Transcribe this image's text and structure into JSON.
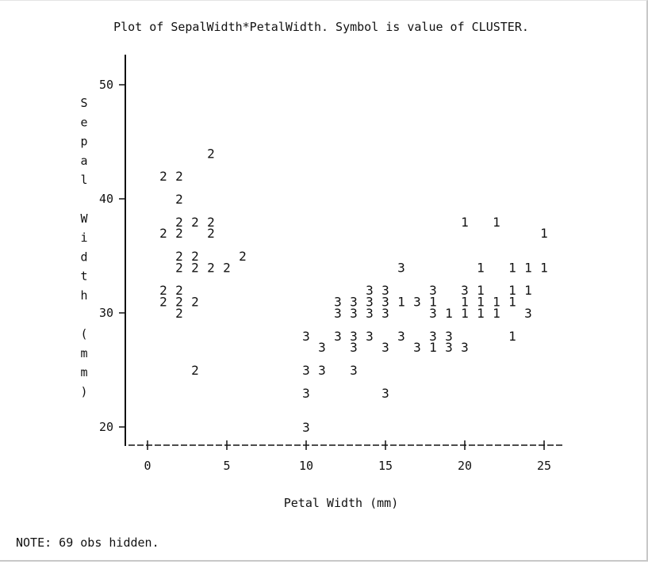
{
  "chart_data": {
    "type": "scatter",
    "title": "Plot of SepalWidth*PetalWidth.  Symbol is value of CLUSTER.",
    "xlabel": "Petal Width (mm)",
    "ylabel": "Sepal Width (mm)",
    "x_ticks": [
      "0",
      "5",
      "10",
      "15",
      "20",
      "25"
    ],
    "y_ticks": [
      "50",
      "40",
      "30",
      "20"
    ],
    "xlim": [
      -1,
      26
    ],
    "ylim": [
      19,
      52
    ],
    "legend": "none",
    "note": "NOTE: 69 obs hidden.",
    "points": [
      {
        "x": 4,
        "y": 44,
        "s": "2"
      },
      {
        "x": 1,
        "y": 42,
        "s": "2"
      },
      {
        "x": 2,
        "y": 42,
        "s": "2"
      },
      {
        "x": 2,
        "y": 40,
        "s": "2"
      },
      {
        "x": 2,
        "y": 38,
        "s": "2"
      },
      {
        "x": 3,
        "y": 38,
        "s": "2"
      },
      {
        "x": 4,
        "y": 38,
        "s": "2"
      },
      {
        "x": 20,
        "y": 38,
        "s": "1"
      },
      {
        "x": 22,
        "y": 38,
        "s": "1"
      },
      {
        "x": 1,
        "y": 37,
        "s": "2"
      },
      {
        "x": 2,
        "y": 37,
        "s": "2"
      },
      {
        "x": 4,
        "y": 37,
        "s": "2"
      },
      {
        "x": 25,
        "y": 37,
        "s": "1"
      },
      {
        "x": 2,
        "y": 35,
        "s": "2"
      },
      {
        "x": 3,
        "y": 35,
        "s": "2"
      },
      {
        "x": 6,
        "y": 35,
        "s": "2"
      },
      {
        "x": 2,
        "y": 34,
        "s": "2"
      },
      {
        "x": 3,
        "y": 34,
        "s": "2"
      },
      {
        "x": 4,
        "y": 34,
        "s": "2"
      },
      {
        "x": 5,
        "y": 34,
        "s": "2"
      },
      {
        "x": 16,
        "y": 34,
        "s": "3"
      },
      {
        "x": 21,
        "y": 34,
        "s": "1"
      },
      {
        "x": 23,
        "y": 34,
        "s": "1"
      },
      {
        "x": 24,
        "y": 34,
        "s": "1"
      },
      {
        "x": 25,
        "y": 34,
        "s": "1"
      },
      {
        "x": 1,
        "y": 32,
        "s": "2"
      },
      {
        "x": 2,
        "y": 32,
        "s": "2"
      },
      {
        "x": 14,
        "y": 32,
        "s": "3"
      },
      {
        "x": 15,
        "y": 32,
        "s": "3"
      },
      {
        "x": 18,
        "y": 32,
        "s": "3"
      },
      {
        "x": 20,
        "y": 32,
        "s": "3"
      },
      {
        "x": 21,
        "y": 32,
        "s": "1"
      },
      {
        "x": 23,
        "y": 32,
        "s": "1"
      },
      {
        "x": 24,
        "y": 32,
        "s": "1"
      },
      {
        "x": 1,
        "y": 31,
        "s": "2"
      },
      {
        "x": 2,
        "y": 31,
        "s": "2"
      },
      {
        "x": 3,
        "y": 31,
        "s": "2"
      },
      {
        "x": 12,
        "y": 31,
        "s": "3"
      },
      {
        "x": 13,
        "y": 31,
        "s": "3"
      },
      {
        "x": 14,
        "y": 31,
        "s": "3"
      },
      {
        "x": 15,
        "y": 31,
        "s": "3"
      },
      {
        "x": 16,
        "y": 31,
        "s": "1"
      },
      {
        "x": 17,
        "y": 31,
        "s": "3"
      },
      {
        "x": 18,
        "y": 31,
        "s": "1"
      },
      {
        "x": 20,
        "y": 31,
        "s": "1"
      },
      {
        "x": 21,
        "y": 31,
        "s": "1"
      },
      {
        "x": 22,
        "y": 31,
        "s": "1"
      },
      {
        "x": 23,
        "y": 31,
        "s": "1"
      },
      {
        "x": 2,
        "y": 30,
        "s": "2"
      },
      {
        "x": 12,
        "y": 30,
        "s": "3"
      },
      {
        "x": 13,
        "y": 30,
        "s": "3"
      },
      {
        "x": 14,
        "y": 30,
        "s": "3"
      },
      {
        "x": 15,
        "y": 30,
        "s": "3"
      },
      {
        "x": 18,
        "y": 30,
        "s": "3"
      },
      {
        "x": 19,
        "y": 30,
        "s": "1"
      },
      {
        "x": 20,
        "y": 30,
        "s": "1"
      },
      {
        "x": 21,
        "y": 30,
        "s": "1"
      },
      {
        "x": 22,
        "y": 30,
        "s": "1"
      },
      {
        "x": 24,
        "y": 30,
        "s": "3"
      },
      {
        "x": 10,
        "y": 28,
        "s": "3"
      },
      {
        "x": 12,
        "y": 28,
        "s": "3"
      },
      {
        "x": 13,
        "y": 28,
        "s": "3"
      },
      {
        "x": 14,
        "y": 28,
        "s": "3"
      },
      {
        "x": 16,
        "y": 28,
        "s": "3"
      },
      {
        "x": 18,
        "y": 28,
        "s": "3"
      },
      {
        "x": 19,
        "y": 28,
        "s": "3"
      },
      {
        "x": 23,
        "y": 28,
        "s": "1"
      },
      {
        "x": 11,
        "y": 27,
        "s": "3"
      },
      {
        "x": 13,
        "y": 27,
        "s": "3"
      },
      {
        "x": 15,
        "y": 27,
        "s": "3"
      },
      {
        "x": 17,
        "y": 27,
        "s": "3"
      },
      {
        "x": 18,
        "y": 27,
        "s": "1"
      },
      {
        "x": 19,
        "y": 27,
        "s": "3"
      },
      {
        "x": 20,
        "y": 27,
        "s": "3"
      },
      {
        "x": 3,
        "y": 25,
        "s": "2"
      },
      {
        "x": 10,
        "y": 25,
        "s": "3"
      },
      {
        "x": 11,
        "y": 25,
        "s": "3"
      },
      {
        "x": 13,
        "y": 25,
        "s": "3"
      },
      {
        "x": 10,
        "y": 23,
        "s": "3"
      },
      {
        "x": 15,
        "y": 23,
        "s": "3"
      },
      {
        "x": 10,
        "y": 20,
        "s": "3"
      }
    ]
  }
}
